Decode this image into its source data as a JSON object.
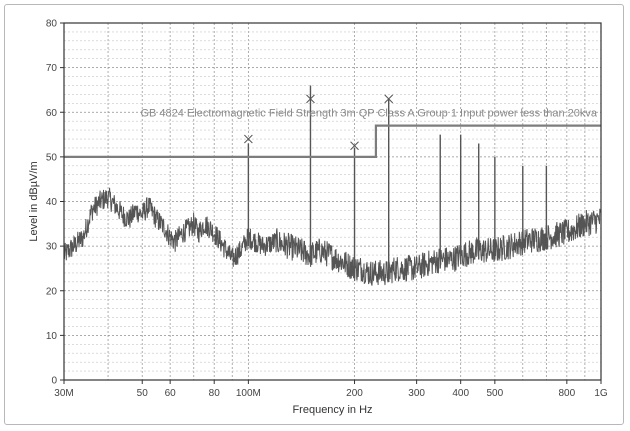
{
  "chart_data": {
    "type": "line",
    "xlabel": "Frequency in Hz",
    "ylabel": "Level in dBµV/m",
    "x_scale": "log",
    "xlim": [
      30000000,
      1000000000
    ],
    "ylim": [
      0,
      80
    ],
    "grid": true,
    "x_ticks": [
      {
        "value": 30000000,
        "label": "30M"
      },
      {
        "value": 50000000,
        "label": "50"
      },
      {
        "value": 60000000,
        "label": "60"
      },
      {
        "value": 80000000,
        "label": "80"
      },
      {
        "value": 100000000,
        "label": "100M"
      },
      {
        "value": 200000000,
        "label": "200"
      },
      {
        "value": 300000000,
        "label": "300"
      },
      {
        "value": 400000000,
        "label": "400"
      },
      {
        "value": 500000000,
        "label": "500"
      },
      {
        "value": 800000000,
        "label": "800"
      },
      {
        "value": 1000000000,
        "label": "1G"
      }
    ],
    "y_ticks": [
      0,
      10,
      20,
      30,
      40,
      50,
      60,
      70,
      80
    ],
    "limit_line": {
      "label": "GB 4824 Electromagnetic Field Strength 3m QP Class A Group 1 Input power less than 20kva",
      "x": [
        30000000,
        230000000,
        230000000,
        1000000000
      ],
      "y": [
        50,
        50,
        57,
        57
      ],
      "color": "#7d7d7d"
    },
    "spectrum": {
      "color": "#555555",
      "x_mhz": [
        30,
        32,
        34,
        36,
        38,
        40,
        42,
        44,
        46,
        48,
        50,
        52,
        55,
        58,
        60,
        62,
        65,
        68,
        70,
        72,
        75,
        78,
        80,
        85,
        90,
        95,
        100,
        105,
        110,
        120,
        130,
        140,
        150,
        160,
        170,
        180,
        190,
        200,
        210,
        220,
        230,
        240,
        250,
        260,
        280,
        300,
        320,
        350,
        380,
        400,
        450,
        500,
        550,
        600,
        700,
        800,
        900,
        1000
      ],
      "y": [
        28,
        30,
        32,
        38,
        40,
        41,
        39,
        37,
        36,
        38,
        37,
        39,
        36,
        34,
        32,
        31,
        33,
        34,
        35,
        33,
        35,
        34,
        33,
        30,
        27,
        29,
        32,
        31,
        30,
        31,
        30,
        29,
        28,
        29,
        28,
        27,
        26,
        25,
        25,
        24,
        24,
        24,
        24,
        25,
        25,
        25,
        26,
        27,
        27,
        28,
        29,
        29,
        30,
        31,
        32,
        33,
        35,
        36
      ]
    },
    "peaks": [
      {
        "x_mhz": 100,
        "y": 53
      },
      {
        "x_mhz": 150,
        "y": 66
      },
      {
        "x_mhz": 200,
        "y": 52
      },
      {
        "x_mhz": 250,
        "y": 63
      },
      {
        "x_mhz": 350,
        "y": 55
      },
      {
        "x_mhz": 400,
        "y": 55
      },
      {
        "x_mhz": 450,
        "y": 53
      },
      {
        "x_mhz": 500,
        "y": 50
      },
      {
        "x_mhz": 600,
        "y": 48
      },
      {
        "x_mhz": 700,
        "y": 48
      }
    ],
    "qp_markers": [
      {
        "x_mhz": 100,
        "y": 54
      },
      {
        "x_mhz": 150,
        "y": 63
      },
      {
        "x_mhz": 200,
        "y": 52.5
      },
      {
        "x_mhz": 250,
        "y": 63
      }
    ]
  }
}
